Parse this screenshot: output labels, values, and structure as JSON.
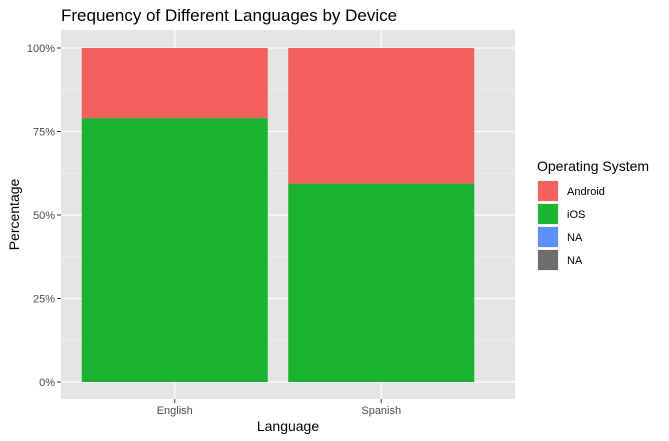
{
  "chart_data": {
    "type": "bar",
    "stacked": true,
    "title": "Frequency of Different Languages by Device",
    "xlabel": "Language",
    "ylabel": "Percentage",
    "categories": [
      "English",
      "Spanish"
    ],
    "ylim": [
      0,
      1
    ],
    "y_ticks": [
      0,
      0.25,
      0.5,
      0.75,
      1.0
    ],
    "y_tick_labels": [
      "0%",
      "25%",
      "50%",
      "75%",
      "100%"
    ],
    "grid": true,
    "legend_position": "right",
    "legend_title": "Operating System",
    "series": [
      {
        "name": "iOS",
        "color": "#1ab22f",
        "values": [
          0.79,
          0.594
        ]
      },
      {
        "name": "Android",
        "color": "#f4615c",
        "values": [
          0.21,
          0.406
        ]
      }
    ],
    "legend": [
      {
        "label": "Android",
        "color": "#f4615c"
      },
      {
        "label": "iOS",
        "color": "#1ab22f"
      },
      {
        "label": "NA",
        "color": "#5b90f6"
      },
      {
        "label": "NA",
        "color": "#6e6e6e"
      }
    ]
  }
}
